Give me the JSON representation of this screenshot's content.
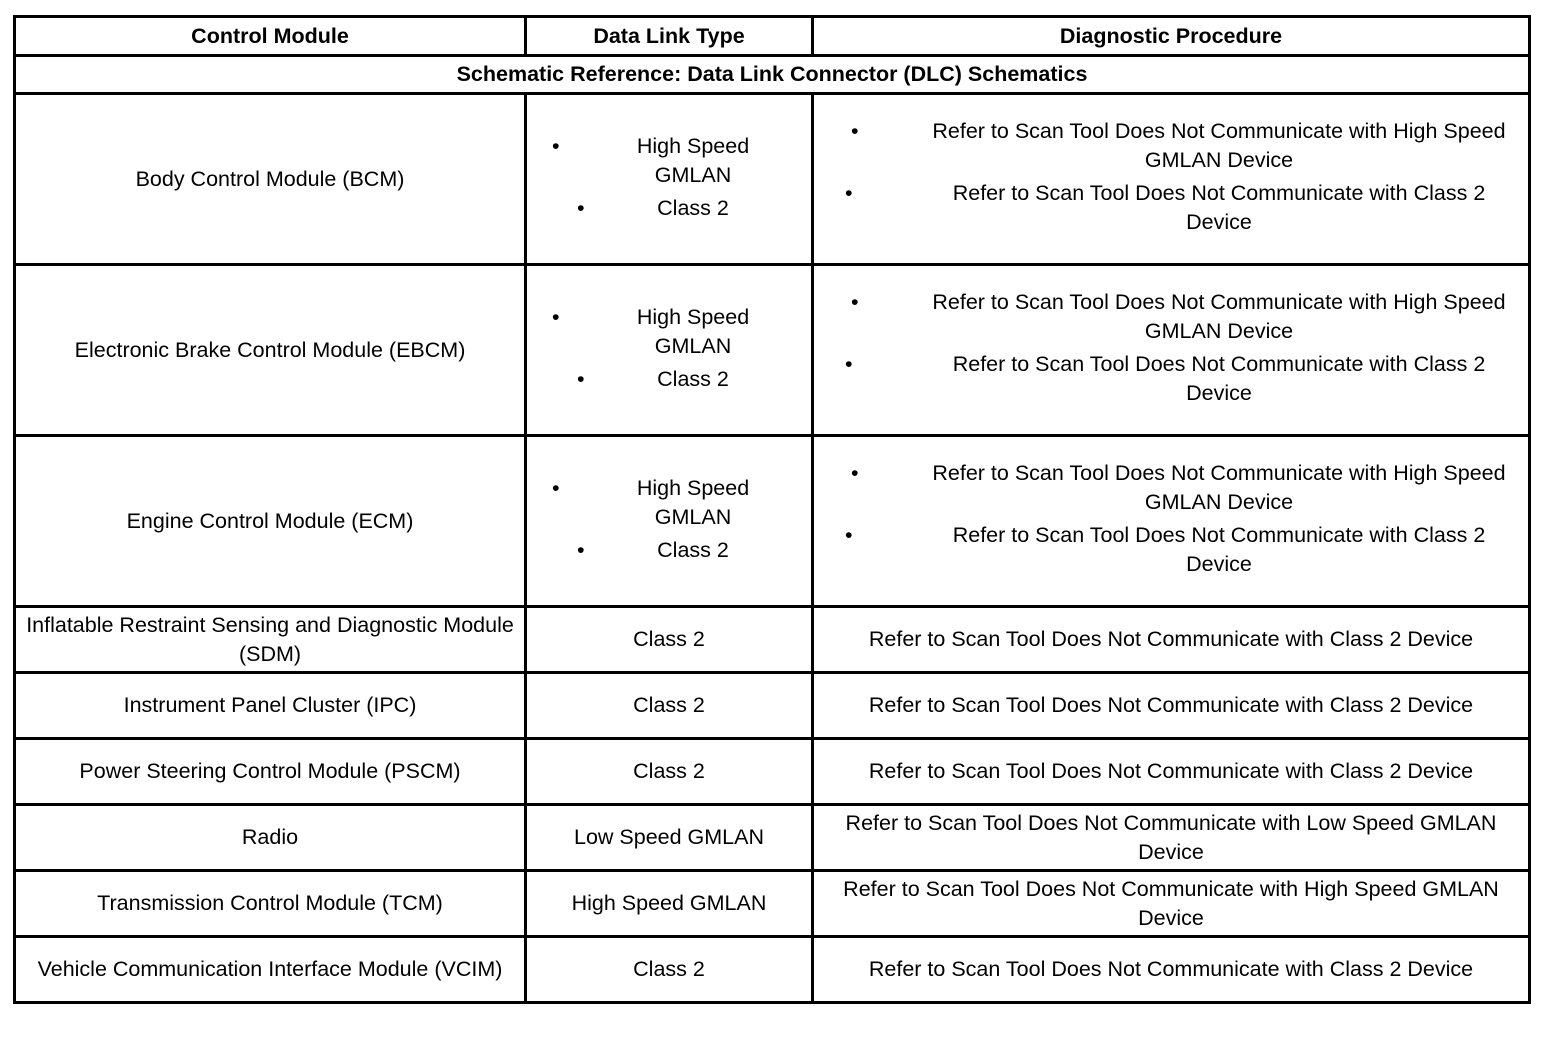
{
  "headers": [
    "Control Module",
    "Data Link Type",
    "Diagnostic Procedure"
  ],
  "schematic_reference": "Schematic Reference: Data Link Connector (DLC) Schematics",
  "bullet": "•",
  "rows": [
    {
      "module": "Body Control Module (BCM)",
      "link_types": [
        "High Speed GMLAN",
        "Class 2"
      ],
      "procedures": [
        "Refer to Scan Tool Does Not Communicate with High Speed GMLAN Device",
        "Refer to Scan Tool Does Not Communicate with Class 2 Device"
      ]
    },
    {
      "module": "Electronic Brake Control Module (EBCM)",
      "link_types": [
        "High Speed GMLAN",
        "Class 2"
      ],
      "procedures": [
        "Refer to Scan Tool Does Not Communicate with High Speed GMLAN Device",
        "Refer to Scan Tool Does Not Communicate with Class 2 Device"
      ]
    },
    {
      "module": "Engine Control Module (ECM)",
      "link_types": [
        "High Speed GMLAN",
        "Class 2"
      ],
      "procedures": [
        "Refer to Scan Tool Does Not Communicate with High Speed GMLAN Device",
        "Refer to Scan Tool Does Not Communicate with Class 2 Device"
      ]
    },
    {
      "module": "Inflatable Restraint Sensing and Diagnostic Module (SDM)",
      "link_type": "Class 2",
      "procedure": "Refer to Scan Tool Does Not Communicate with Class 2 Device"
    },
    {
      "module": "Instrument Panel Cluster (IPC)",
      "link_type": "Class 2",
      "procedure": "Refer to Scan Tool Does Not Communicate with Class 2 Device"
    },
    {
      "module": "Power Steering Control Module (PSCM)",
      "link_type": "Class 2",
      "procedure": "Refer to Scan Tool Does Not Communicate with Class 2 Device"
    },
    {
      "module": "Radio",
      "link_type": "Low Speed GMLAN",
      "procedure": "Refer to Scan Tool Does Not Communicate with Low Speed GMLAN Device"
    },
    {
      "module": "Transmission Control Module (TCM)",
      "link_type": "High Speed GMLAN",
      "procedure": "Refer to Scan Tool Does Not Communicate with High Speed GMLAN Device"
    },
    {
      "module": "Vehicle Communication Interface Module (VCIM)",
      "link_type": "Class 2",
      "procedure": "Refer to Scan Tool Does Not Communicate with Class 2 Device"
    }
  ]
}
